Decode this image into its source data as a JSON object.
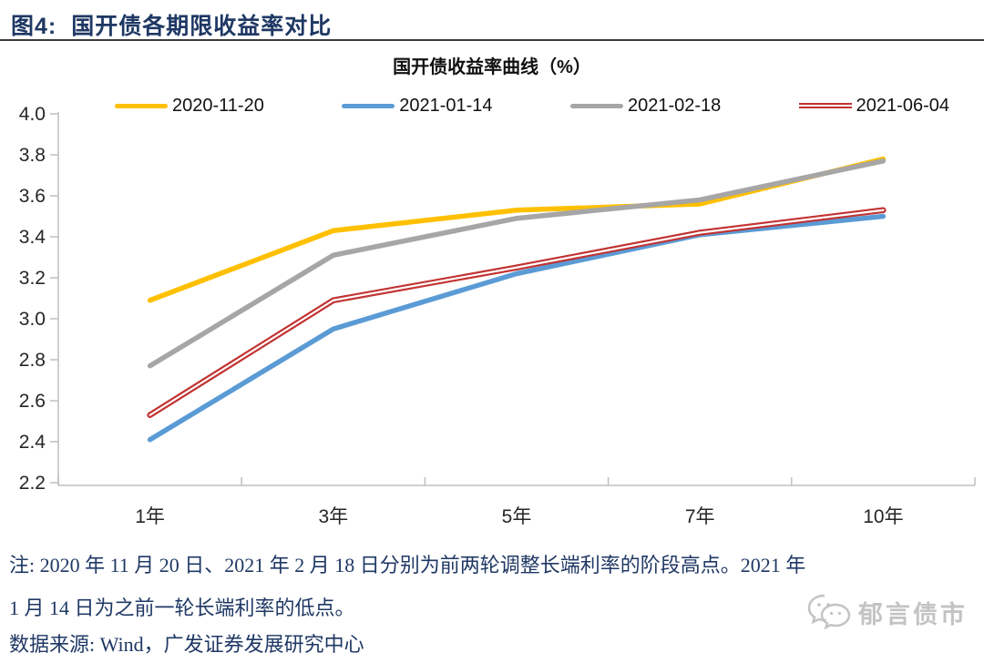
{
  "figure": {
    "label": "图4:",
    "title": "国开债各期限收益率对比"
  },
  "chart_data": {
    "type": "line",
    "title": "国开债收益率曲线（%）",
    "categories": [
      "1年",
      "3年",
      "5年",
      "7年",
      "10年"
    ],
    "series": [
      {
        "name": "2020-11-20",
        "color": "#FFC000",
        "style": "solid",
        "values": [
          3.09,
          3.43,
          3.53,
          3.56,
          3.78
        ]
      },
      {
        "name": "2021-01-14",
        "color": "#5B9BD5",
        "style": "solid",
        "values": [
          2.41,
          2.95,
          3.22,
          3.41,
          3.5
        ]
      },
      {
        "name": "2021-02-18",
        "color": "#A6A6A6",
        "style": "solid",
        "values": [
          2.77,
          3.31,
          3.49,
          3.58,
          3.77
        ]
      },
      {
        "name": "2021-06-04",
        "color": "#C23232",
        "style": "double",
        "values": [
          2.53,
          3.09,
          3.25,
          3.42,
          3.53
        ]
      }
    ],
    "ylim": [
      2.2,
      4.0
    ],
    "yticks": [
      "4.0",
      "3.8",
      "3.6",
      "3.4",
      "3.2",
      "3.0",
      "2.8",
      "2.6",
      "2.4",
      "2.2"
    ],
    "legend_position": "top",
    "grid": false,
    "axis_color": "#BFBFBF",
    "tick_label_color": "#262626"
  },
  "note": {
    "line1": "注: 2020 年 11 月 20 日、2021 年 2 月 18 日分别为前两轮调整长端利率的阶段高点。2021 年",
    "line2": "1 月 14 日为之前一轮长端利率的低点。"
  },
  "source": "数据来源: Wind，广发证券发展研究中心",
  "watermark": {
    "text": "郁言债市"
  },
  "colors": {
    "heading": "#1F3864",
    "rule": "#3b3b3b",
    "watermark_gray": "#c3c3c3"
  }
}
